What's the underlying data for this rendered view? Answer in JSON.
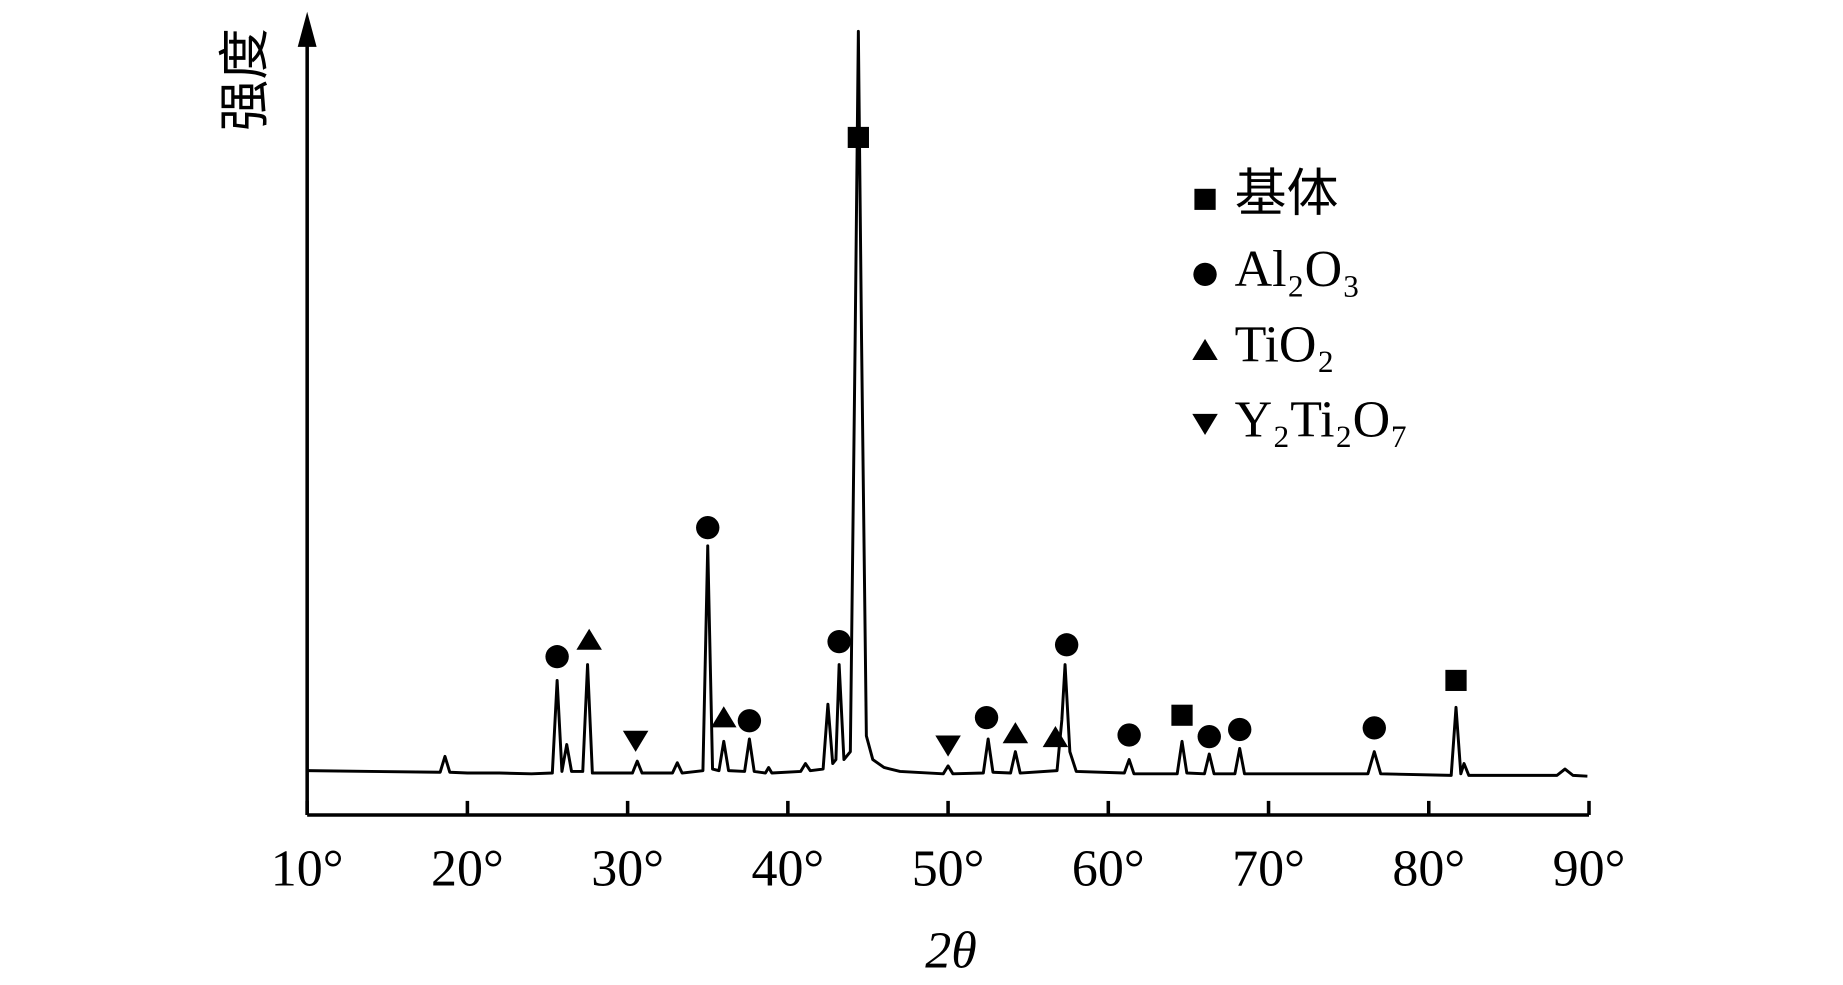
{
  "chart_data": {
    "type": "line",
    "x_label": "2θ",
    "y_label": "强度",
    "xlim": [
      10,
      90
    ],
    "ylim": [
      0,
      100
    ],
    "xticks": [
      {
        "value": 10,
        "label": "10°"
      },
      {
        "value": 20,
        "label": "20°"
      },
      {
        "value": 30,
        "label": "30°"
      },
      {
        "value": 40,
        "label": "40°"
      },
      {
        "value": 50,
        "label": "50°"
      },
      {
        "value": 60,
        "label": "60°"
      },
      {
        "value": 70,
        "label": "70°"
      },
      {
        "value": 80,
        "label": "80°"
      },
      {
        "value": 90,
        "label": "90°"
      }
    ],
    "color": "#000000",
    "x": [
      10,
      14,
      18.3,
      18.6,
      18.9,
      20,
      22,
      24,
      25.3,
      25.6,
      25.9,
      26.2,
      26.5,
      27.2,
      27.5,
      27.8,
      30.3,
      30.6,
      30.9,
      32.8,
      33.1,
      33.4,
      34.7,
      35.0,
      35.3,
      35.7,
      36.0,
      36.3,
      37.3,
      37.6,
      37.9,
      38.6,
      38.8,
      39,
      40.8,
      41.1,
      41.4,
      42.2,
      42.5,
      42.8,
      43.0,
      43.2,
      43.5,
      43.9,
      44.2,
      44.4,
      44.6,
      44.9,
      45.3,
      46,
      47,
      49.7,
      50.0,
      50.3,
      52.2,
      52.5,
      52.8,
      53.9,
      54.2,
      54.5,
      56.8,
      57.1,
      57.3,
      57.6,
      58,
      61,
      61.3,
      61.6,
      64.3,
      64.6,
      64.9,
      66,
      66.3,
      66.6,
      67.9,
      68.2,
      68.5,
      76.2,
      76.6,
      77,
      81.4,
      81.7,
      82,
      82.2,
      82.5,
      88,
      88.5,
      89,
      89.9
    ],
    "values": [
      5.6,
      5.5,
      5.4,
      7.4,
      5.4,
      5.3,
      5.3,
      5.2,
      5.3,
      17,
      5.5,
      8.9,
      5.5,
      5.5,
      19,
      5.3,
      5.3,
      6.8,
      5.3,
      5.3,
      6.6,
      5.3,
      5.6,
      34,
      5.8,
      5.6,
      9.3,
      5.6,
      5.5,
      9.6,
      5.5,
      5.3,
      6,
      5.3,
      5.5,
      6.5,
      5.6,
      5.8,
      14,
      6.5,
      7,
      19,
      7,
      8,
      60,
      99,
      60,
      10,
      7,
      6,
      5.5,
      5.2,
      6.2,
      5.2,
      5.3,
      9.6,
      5.4,
      5.3,
      8,
      5.3,
      5.6,
      12,
      19,
      8,
      5.5,
      5.3,
      7,
      5.2,
      5.2,
      9.3,
      5.3,
      5.2,
      7.7,
      5.2,
      5.2,
      8.4,
      5.2,
      5.2,
      8,
      5.2,
      5.0,
      13.6,
      5.2,
      6.5,
      5.0,
      5,
      5.8,
      5,
      4.9
    ],
    "phases": [
      {
        "name": "基体",
        "marker": "square",
        "x": [
          44.4,
          64.6,
          81.7
        ],
        "y": [
          85.6,
          12.6,
          17.0
        ]
      },
      {
        "name": "Al₂O₃",
        "marker": "circle",
        "x": [
          25.6,
          35.0,
          37.6,
          43.2,
          52.4,
          57.4,
          61.3,
          66.3,
          68.2,
          76.6
        ],
        "y": [
          20,
          36.3,
          11.9,
          21.9,
          12.3,
          21.5,
          10.1,
          9.9,
          10.8,
          11.0
        ]
      },
      {
        "name": "TiO₂",
        "marker": "triangle-up",
        "x": [
          27.6,
          36.0,
          54.2,
          56.7
        ],
        "y": [
          22.2,
          12.4,
          10.4,
          9.9
        ]
      },
      {
        "name": "Y₂Ti₂O₇",
        "marker": "triangle-down",
        "x": [
          30.5,
          50.0
        ],
        "y": [
          9.3,
          8.7
        ]
      }
    ]
  }
}
